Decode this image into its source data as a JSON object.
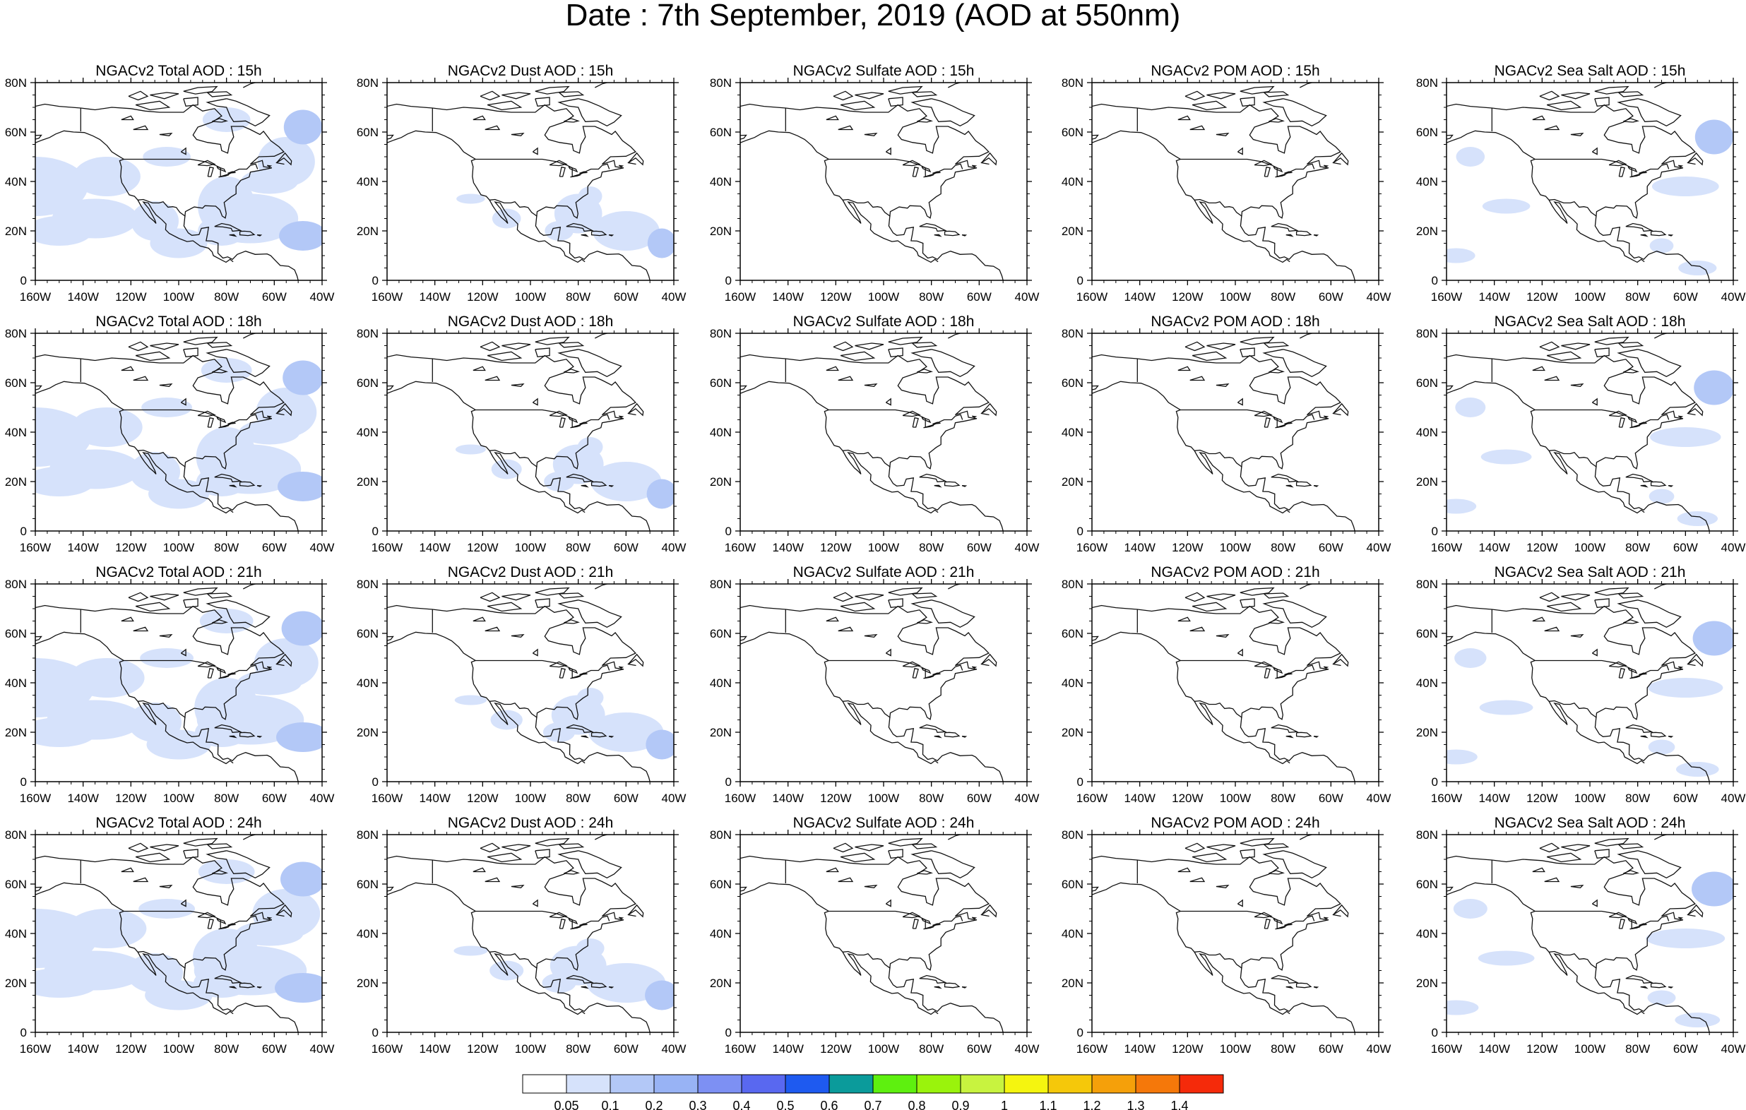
{
  "title": "Date : 7th September, 2019 (AOD at 550nm)",
  "panels": {
    "columns": [
      "Total",
      "Dust",
      "Sulfate",
      "POM",
      "Sea Salt"
    ],
    "rows": [
      "15h",
      "18h",
      "21h",
      "24h"
    ],
    "titles": [
      [
        "NGACv2 Total AOD : 15h",
        "NGACv2 Dust AOD : 15h",
        "NGACv2 Sulfate AOD : 15h",
        "NGACv2 POM AOD : 15h",
        "NGACv2 Sea Salt AOD : 15h"
      ],
      [
        "NGACv2 Total AOD : 18h",
        "NGACv2 Dust AOD : 18h",
        "NGACv2 Sulfate AOD : 18h",
        "NGACv2 POM AOD : 18h",
        "NGACv2 Sea Salt AOD : 18h"
      ],
      [
        "NGACv2 Total AOD : 21h",
        "NGACv2 Dust AOD : 21h",
        "NGACv2 Sulfate AOD : 21h",
        "NGACv2 POM AOD : 21h",
        "NGACv2 Sea Salt AOD : 21h"
      ],
      [
        "NGACv2 Total AOD : 24h",
        "NGACv2 Dust AOD : 24h",
        "NGACv2 Sulfate AOD : 24h",
        "NGACv2 POM AOD : 24h",
        "NGACv2 Sea Salt  AOD : 24h"
      ]
    ]
  },
  "axes": {
    "lon_ticks": [
      "160W",
      "140W",
      "120W",
      "100W",
      "80W",
      "60W",
      "40W"
    ],
    "lat_ticks": [
      "0",
      "20N",
      "40N",
      "60N",
      "80N"
    ],
    "lon_range": [
      -160,
      -40
    ],
    "lat_range": [
      0,
      80
    ]
  },
  "colorbar": {
    "labels": [
      "0.05",
      "0.1",
      "0.2",
      "0.3",
      "0.4",
      "0.5",
      "0.6",
      "0.7",
      "0.8",
      "0.9",
      "1",
      "1.1",
      "1.2",
      "1.3",
      "1.4"
    ],
    "colors": [
      "#ffffff",
      "#d6e2fb",
      "#b3c8f7",
      "#98b3f5",
      "#7d90f3",
      "#5968f0",
      "#1e5af0",
      "#0b9b9b",
      "#5ef00f",
      "#9af30c",
      "#c8f33f",
      "#f5f50f",
      "#f5c80a",
      "#f5a00a",
      "#f5780a",
      "#f52a0a"
    ]
  }
}
